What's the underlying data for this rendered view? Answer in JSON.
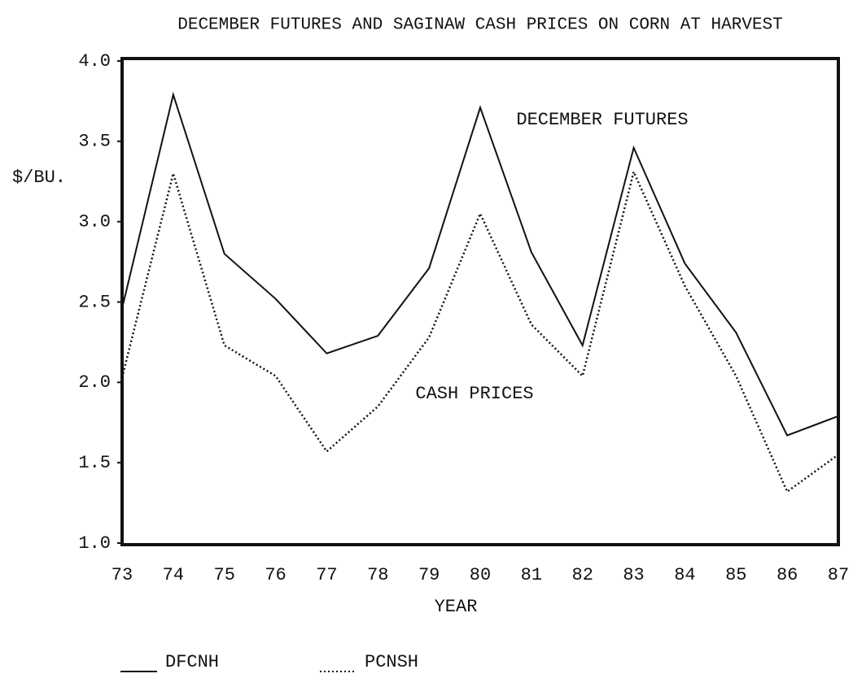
{
  "chart_data": {
    "type": "line",
    "title": "DECEMBER FUTURES AND SAGINAW CASH PRICES ON CORN AT HARVEST",
    "x_label": "YEAR",
    "y_label": "$/BU.",
    "categories": [
      "73",
      "74",
      "75",
      "76",
      "77",
      "78",
      "79",
      "80",
      "81",
      "82",
      "83",
      "84",
      "85",
      "86",
      "87"
    ],
    "series": [
      {
        "name": "DFCNH",
        "color": "#111111",
        "style": "solid",
        "values": [
          2.46,
          3.79,
          2.8,
          2.52,
          2.18,
          2.29,
          2.71,
          3.71,
          2.81,
          2.23,
          3.46,
          2.74,
          2.31,
          1.67,
          1.79
        ]
      },
      {
        "name": "PCNSH",
        "color": "#111111",
        "style": "dotted",
        "values": [
          2.03,
          3.3,
          2.23,
          2.04,
          1.57,
          1.85,
          2.28,
          3.05,
          2.36,
          2.04,
          3.31,
          2.6,
          2.04,
          1.32,
          1.55
        ]
      }
    ],
    "annotations": [
      "DECEMBER FUTURES",
      "CASH PRICES"
    ],
    "ylim": [
      1,
      4
    ],
    "yticks": [
      {
        "value": 1,
        "label": "1.0"
      },
      1.5,
      {
        "value": 2,
        "label": "2.0"
      },
      2.5,
      {
        "value": 3,
        "label": "3.0"
      },
      3.5,
      {
        "value": 4,
        "label": "4.0"
      }
    ],
    "grid": false
  }
}
